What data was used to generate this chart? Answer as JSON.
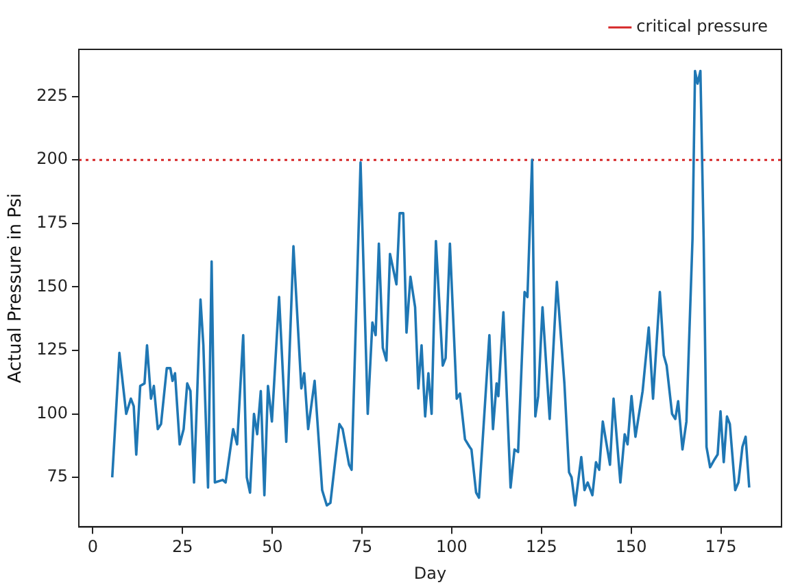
{
  "chart_data": {
    "type": "line",
    "xlabel": "Day",
    "ylabel": "Actual Pressure in Psi",
    "xlim": [
      -3.9,
      191.9
    ],
    "ylim": [
      55.5,
      243.5
    ],
    "xticks": [
      0,
      25,
      50,
      75,
      100,
      125,
      150,
      175
    ],
    "yticks": [
      75,
      100,
      125,
      150,
      175,
      200,
      225
    ],
    "grid": false,
    "legend": "top right",
    "marker": "none",
    "line_style": "solid",
    "series": [
      {
        "color": "#1f77b4",
        "x": [
          5.4,
          7.4,
          9.3,
          10.6,
          11.4,
          12.1,
          13.2,
          14.4,
          15.1,
          16.2,
          17.0,
          18.1,
          19.0,
          20.6,
          21.6,
          22.2,
          22.9,
          24.2,
          25.3,
          26.3,
          27.2,
          28.2,
          30.0,
          30.8,
          32.1,
          33.1,
          34.0,
          36.2,
          37.0,
          39.1,
          40.2,
          41.9,
          42.9,
          43.8,
          44.9,
          45.8,
          46.8,
          47.8,
          48.8,
          49.9,
          51.9,
          53.9,
          55.9,
          58.1,
          58.9,
          60.0,
          61.8,
          63.9,
          65.2,
          66.2,
          68.7,
          69.6,
          71.4,
          72.1,
          74.6,
          76.6,
          77.9,
          78.8,
          79.7,
          80.8,
          81.8,
          82.8,
          84.6,
          85.5,
          86.5,
          87.4,
          88.5,
          89.8,
          90.7,
          91.6,
          92.6,
          93.5,
          94.4,
          95.6,
          97.5,
          98.3,
          99.5,
          101.4,
          102.3,
          103.7,
          105.0,
          105.5,
          106.8,
          107.6,
          110.5,
          111.5,
          112.5,
          113.0,
          114.4,
          116.4,
          117.5,
          118.5,
          120.3,
          121.1,
          122.4,
          123.3,
          124.1,
          125.3,
          127.3,
          129.3,
          131.4,
          132.7,
          133.4,
          134.4,
          136.1,
          137.0,
          137.9,
          139.2,
          140.2,
          141.1,
          142.1,
          144.1,
          145.1,
          147.0,
          148.2,
          149.0,
          150.1,
          151.2,
          153.2,
          154.9,
          156.1,
          158.0,
          159.1,
          159.9,
          161.4,
          162.3,
          163.1,
          164.3,
          165.4,
          167.1,
          167.8,
          168.5,
          169.3,
          170.2,
          171.0,
          172.0,
          173.2,
          174.1,
          174.9,
          175.8,
          176.7,
          177.5,
          179.0,
          179.9,
          181.0,
          181.9,
          182.9
        ],
        "values": [
          75,
          124,
          100,
          106,
          103,
          84,
          111,
          112,
          127,
          106,
          111,
          94,
          96,
          118,
          118,
          113,
          116,
          88,
          94,
          112,
          109,
          73,
          145,
          127,
          71,
          160,
          73,
          74,
          73,
          94,
          88,
          131,
          75,
          69,
          100,
          92,
          109,
          68,
          111,
          97,
          146,
          89,
          166,
          110,
          116,
          94,
          113,
          70,
          64,
          65,
          96,
          94,
          80,
          78,
          199,
          100,
          136,
          131,
          167,
          126,
          121,
          163,
          151,
          179,
          179,
          132,
          154,
          142,
          110,
          127,
          99,
          116,
          100,
          168,
          119,
          122,
          167,
          106,
          108,
          90,
          87,
          86,
          69,
          67,
          131,
          94,
          112,
          107,
          140,
          71,
          86,
          85,
          148,
          146,
          200,
          99,
          107,
          142,
          98,
          152,
          112,
          77,
          75,
          64,
          83,
          70,
          73,
          68,
          81,
          78,
          97,
          80,
          106,
          73,
          92,
          88,
          107,
          91,
          109,
          134,
          106,
          148,
          123,
          119,
          100,
          98,
          105,
          86,
          97,
          169,
          235,
          230,
          235,
          169,
          87,
          79,
          82,
          84,
          101,
          81,
          99,
          96,
          70,
          73,
          87,
          91,
          71
        ]
      }
    ],
    "ref_lines": [
      {
        "axis": "y",
        "value": 200,
        "label": "critical pressure",
        "color": "#d62728",
        "line_style": "dotted"
      }
    ]
  }
}
